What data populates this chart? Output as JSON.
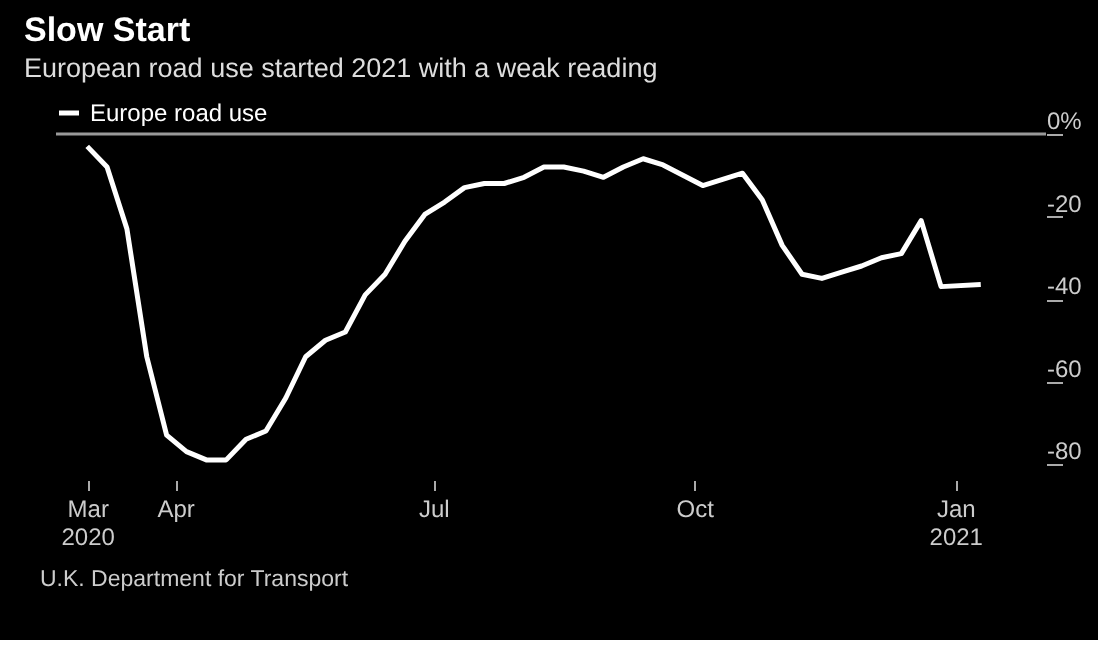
{
  "chart_data": {
    "type": "line",
    "title": "Slow Start",
    "subtitle": "European road use started 2021 with a weak reading",
    "annotations": [
      "U.K. Department for Transport"
    ],
    "x": [
      "2020-03-01",
      "2020-03-08",
      "2020-03-15",
      "2020-03-22",
      "2020-03-29",
      "2020-04-05",
      "2020-04-12",
      "2020-04-19",
      "2020-04-26",
      "2020-05-03",
      "2020-05-10",
      "2020-05-17",
      "2020-05-24",
      "2020-05-31",
      "2020-06-07",
      "2020-06-14",
      "2020-06-21",
      "2020-06-28",
      "2020-07-05",
      "2020-07-12",
      "2020-07-19",
      "2020-07-26",
      "2020-08-02",
      "2020-08-09",
      "2020-08-16",
      "2020-08-23",
      "2020-08-30",
      "2020-09-06",
      "2020-09-13",
      "2020-09-20",
      "2020-09-27",
      "2020-10-04",
      "2020-10-11",
      "2020-10-18",
      "2020-10-25",
      "2020-11-01",
      "2020-11-08",
      "2020-11-15",
      "2020-11-22",
      "2020-11-29",
      "2020-12-06",
      "2020-12-13",
      "2020-12-20",
      "2020-12-27",
      "2021-01-10"
    ],
    "series": [
      {
        "name": "Europe road use",
        "color": "#ffffff",
        "values": [
          -3,
          -8,
          -23,
          -54,
          -73,
          -77,
          -79,
          -79,
          -74,
          -72,
          -64,
          -54,
          -50,
          -48,
          -39,
          -34,
          -26,
          -19.5,
          -16.5,
          -13,
          -12,
          -12,
          -10.5,
          -8,
          -8,
          -9,
          -10.5,
          -8,
          -6,
          -7.5,
          -10,
          -12.5,
          -11,
          -9.5,
          -16,
          -27,
          -34,
          -35,
          -33.5,
          -32,
          -30,
          -29,
          -21,
          -37,
          -36.5
        ]
      }
    ],
    "xlim": [
      "2020-02-19",
      "2021-02-02"
    ],
    "xticks": [
      {
        "value": "2020-03-01",
        "label": "Mar 2020"
      },
      {
        "value": "2020-04-01",
        "label": "Apr"
      },
      {
        "value": "2020-07-01",
        "label": "Jul"
      },
      {
        "value": "2020-10-01",
        "label": "Oct"
      },
      {
        "value": "2021-01-01",
        "label": "Jan 2021"
      }
    ],
    "ylim": [
      -80,
      0
    ],
    "yticks": [
      {
        "value": 0,
        "label": "0%"
      },
      {
        "value": -20,
        "label": "-20"
      },
      {
        "value": -40,
        "label": "-40"
      },
      {
        "value": -60,
        "label": "-60"
      },
      {
        "value": -80,
        "label": "-80"
      }
    ],
    "ref_lines": [
      {
        "axis": "y",
        "value": 0,
        "color": "#999999"
      }
    ],
    "grid": false,
    "legend": "top left",
    "line_style": "solid",
    "marker": "none"
  }
}
